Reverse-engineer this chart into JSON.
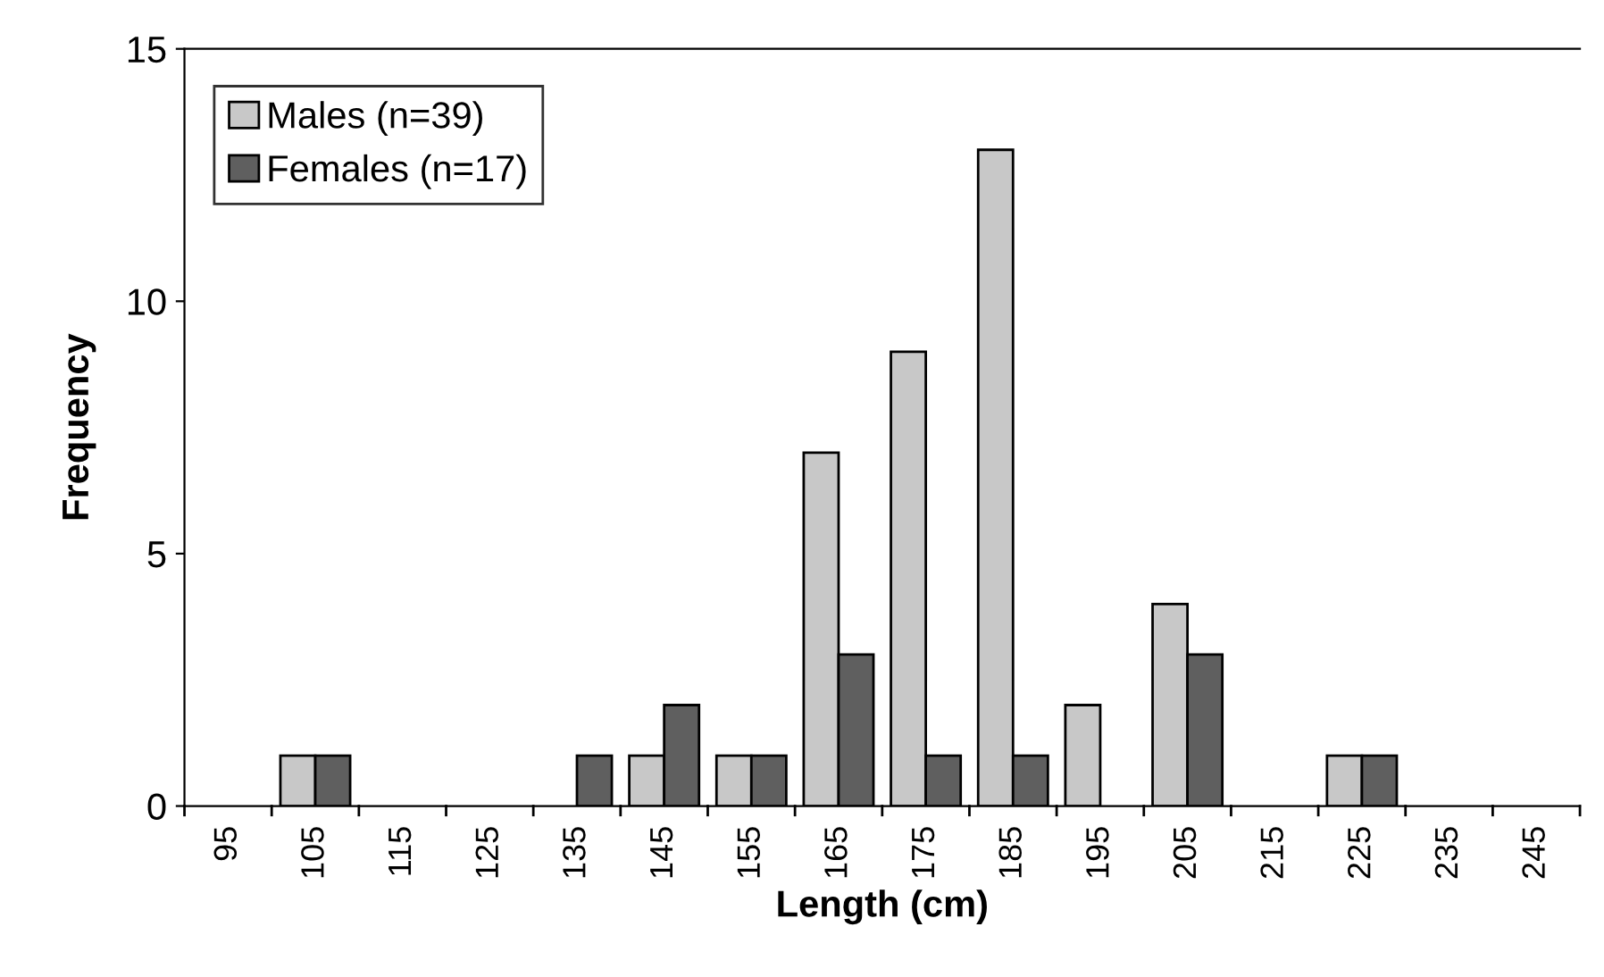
{
  "chart_data": {
    "type": "bar",
    "xlabel": "Length (cm)",
    "ylabel": "Frequency",
    "categories": [
      "95",
      "105",
      "115",
      "125",
      "135",
      "145",
      "155",
      "165",
      "175",
      "185",
      "195",
      "205",
      "215",
      "225",
      "235",
      "245"
    ],
    "series": [
      {
        "name": "Males (n=39)",
        "color": "#c8c8c8",
        "values": [
          0,
          1,
          0,
          0,
          0,
          1,
          1,
          7,
          9,
          13,
          2,
          4,
          0,
          1,
          0,
          0
        ]
      },
      {
        "name": "Females (n=17)",
        "color": "#5f5f5f",
        "values": [
          0,
          1,
          0,
          0,
          1,
          2,
          1,
          3,
          1,
          1,
          0,
          3,
          0,
          1,
          0,
          0
        ]
      }
    ],
    "ylim": [
      0,
      15
    ],
    "yticks": [
      0,
      5,
      10,
      15
    ],
    "grid": false,
    "legend": "top left"
  }
}
